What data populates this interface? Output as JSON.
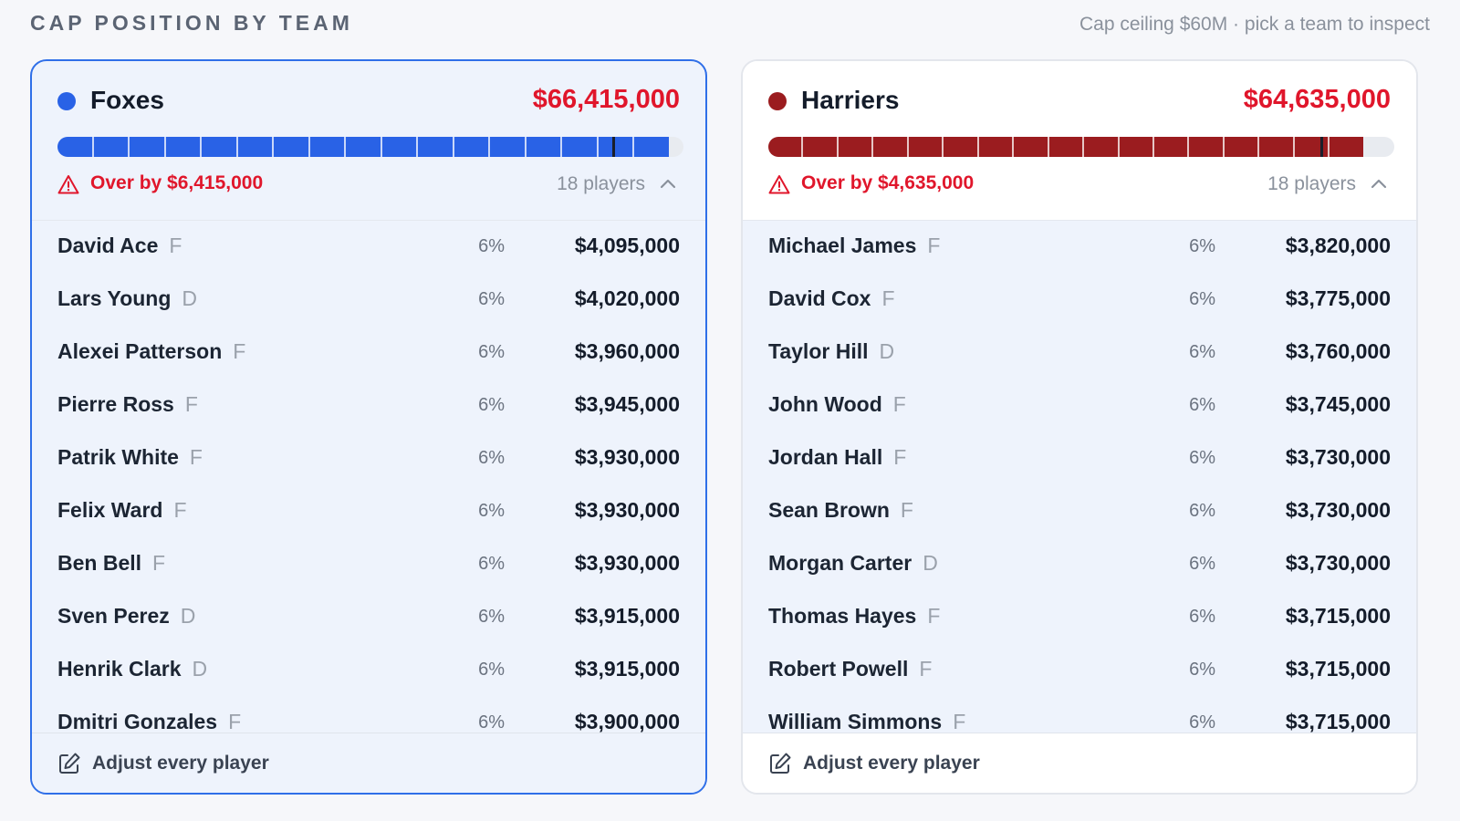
{
  "header": {
    "title": "CAP POSITION BY TEAM",
    "subtitle": "Cap ceiling $60M · pick a team to inspect"
  },
  "teams": [
    {
      "name": "Foxes",
      "color": "#2962e6",
      "total": "$66,415,000",
      "over_label": "Over by $6,415,000",
      "players_label": "18 players",
      "adjust_label": "Adjust every player",
      "selected": true,
      "cap_fill_fraction": 0.976,
      "cap_ceiling_fraction": 0.887,
      "players": [
        {
          "name": "David Ace",
          "pos": "F",
          "pct": "6%",
          "salary": "$4,095,000"
        },
        {
          "name": "Lars Young",
          "pos": "D",
          "pct": "6%",
          "salary": "$4,020,000"
        },
        {
          "name": "Alexei Patterson",
          "pos": "F",
          "pct": "6%",
          "salary": "$3,960,000"
        },
        {
          "name": "Pierre Ross",
          "pos": "F",
          "pct": "6%",
          "salary": "$3,945,000"
        },
        {
          "name": "Patrik White",
          "pos": "F",
          "pct": "6%",
          "salary": "$3,930,000"
        },
        {
          "name": "Felix Ward",
          "pos": "F",
          "pct": "6%",
          "salary": "$3,930,000"
        },
        {
          "name": "Ben Bell",
          "pos": "F",
          "pct": "6%",
          "salary": "$3,930,000"
        },
        {
          "name": "Sven Perez",
          "pos": "D",
          "pct": "6%",
          "salary": "$3,915,000"
        },
        {
          "name": "Henrik Clark",
          "pos": "D",
          "pct": "6%",
          "salary": "$3,915,000"
        },
        {
          "name": "Dmitri Gonzales",
          "pos": "F",
          "pct": "6%",
          "salary": "$3,900,000"
        }
      ]
    },
    {
      "name": "Harriers",
      "color": "#9b1c1f",
      "total": "$64,635,000",
      "over_label": "Over by $4,635,000",
      "players_label": "18 players",
      "adjust_label": "Adjust every player",
      "selected": false,
      "cap_fill_fraction": 0.95,
      "cap_ceiling_fraction": 0.882,
      "players": [
        {
          "name": "Michael James",
          "pos": "F",
          "pct": "6%",
          "salary": "$3,820,000"
        },
        {
          "name": "David Cox",
          "pos": "F",
          "pct": "6%",
          "salary": "$3,775,000"
        },
        {
          "name": "Taylor Hill",
          "pos": "D",
          "pct": "6%",
          "salary": "$3,760,000"
        },
        {
          "name": "John Wood",
          "pos": "F",
          "pct": "6%",
          "salary": "$3,745,000"
        },
        {
          "name": "Jordan Hall",
          "pos": "F",
          "pct": "6%",
          "salary": "$3,730,000"
        },
        {
          "name": "Sean Brown",
          "pos": "F",
          "pct": "6%",
          "salary": "$3,730,000"
        },
        {
          "name": "Morgan Carter",
          "pos": "D",
          "pct": "6%",
          "salary": "$3,730,000"
        },
        {
          "name": "Thomas Hayes",
          "pos": "F",
          "pct": "6%",
          "salary": "$3,715,000"
        },
        {
          "name": "Robert Powell",
          "pos": "F",
          "pct": "6%",
          "salary": "$3,715,000"
        },
        {
          "name": "William Simmons",
          "pos": "F",
          "pct": "6%",
          "salary": "$3,715,000"
        }
      ]
    }
  ],
  "icons": {
    "warning": "warning-triangle-icon",
    "collapse": "chevron-up-icon",
    "edit": "pencil-square-icon"
  }
}
